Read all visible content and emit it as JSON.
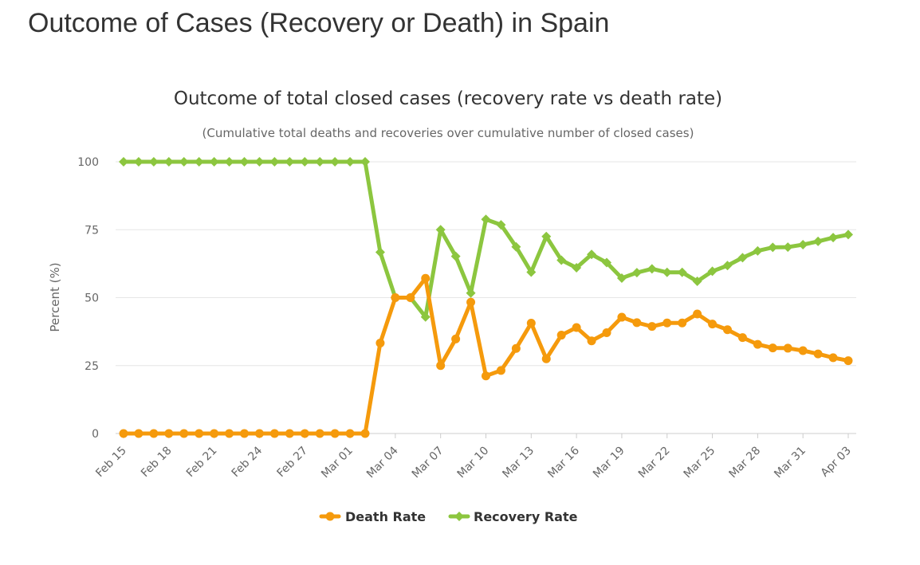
{
  "page": {
    "title": "Outcome of Cases (Recovery or Death) in Spain"
  },
  "chart_data": {
    "type": "line",
    "title": "Outcome of total closed cases (recovery rate vs death rate)",
    "subtitle": "(Cumulative total deaths and recoveries over cumulative number of closed cases)",
    "ylabel": "Percent (%)",
    "ylim": [
      0,
      100
    ],
    "yticks": [
      0,
      25,
      50,
      75,
      100
    ],
    "x": [
      "Feb 15",
      "Feb 16",
      "Feb 17",
      "Feb 18",
      "Feb 19",
      "Feb 20",
      "Feb 21",
      "Feb 22",
      "Feb 23",
      "Feb 24",
      "Feb 25",
      "Feb 26",
      "Feb 27",
      "Feb 28",
      "Feb 29",
      "Mar 01",
      "Mar 02",
      "Mar 03",
      "Mar 04",
      "Mar 05",
      "Mar 06",
      "Mar 07",
      "Mar 08",
      "Mar 09",
      "Mar 10",
      "Mar 11",
      "Mar 12",
      "Mar 13",
      "Mar 14",
      "Mar 15",
      "Mar 16",
      "Mar 17",
      "Mar 18",
      "Mar 19",
      "Mar 20",
      "Mar 21",
      "Mar 22",
      "Mar 23",
      "Mar 24",
      "Mar 25",
      "Mar 26",
      "Mar 27",
      "Mar 28",
      "Mar 29",
      "Mar 30",
      "Mar 31",
      "Apr 01",
      "Apr 02",
      "Apr 03"
    ],
    "xtick_labels": [
      "Feb 15",
      "Feb 18",
      "Feb 21",
      "Feb 24",
      "Feb 27",
      "Mar 01",
      "Mar 04",
      "Mar 07",
      "Mar 10",
      "Mar 13",
      "Mar 16",
      "Mar 19",
      "Mar 22",
      "Mar 25",
      "Mar 28",
      "Mar 31",
      "Apr 03"
    ],
    "grid": true,
    "legend_position": "bottom-center",
    "series": [
      {
        "name": "Death Rate",
        "color": "#f59a0c",
        "marker": "circle",
        "values": [
          0,
          0,
          0,
          0,
          0,
          0,
          0,
          0,
          0,
          0,
          0,
          0,
          0,
          0,
          0,
          0,
          0,
          33.3,
          50,
          50,
          57.1,
          25,
          34.8,
          48.3,
          21.2,
          23.2,
          31.3,
          40.6,
          27.5,
          36.2,
          39,
          34.1,
          37.1,
          42.8,
          40.8,
          39.4,
          40.7,
          40.7,
          44,
          40.3,
          38.2,
          35.3,
          32.8,
          31.5,
          31.4,
          30.5,
          29.3,
          27.9,
          26.8
        ]
      },
      {
        "name": "Recovery Rate",
        "color": "#8cc63f",
        "marker": "diamond",
        "values": [
          100,
          100,
          100,
          100,
          100,
          100,
          100,
          100,
          100,
          100,
          100,
          100,
          100,
          100,
          100,
          100,
          100,
          66.7,
          50,
          50,
          42.9,
          75,
          65.2,
          51.7,
          78.8,
          76.8,
          68.7,
          59.4,
          72.5,
          63.8,
          61,
          65.9,
          62.9,
          57.2,
          59.2,
          60.6,
          59.3,
          59.3,
          56,
          59.7,
          61.8,
          64.7,
          67.2,
          68.5,
          68.6,
          69.5,
          70.7,
          72.1,
          73.2
        ]
      }
    ]
  }
}
